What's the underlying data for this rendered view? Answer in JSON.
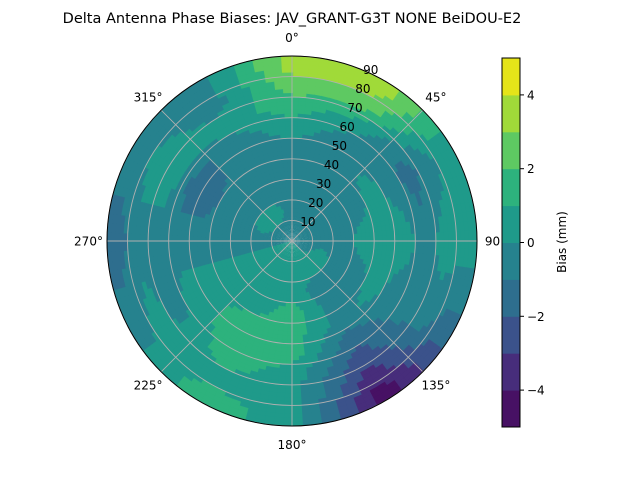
{
  "chart_data": {
    "type": "heatmap",
    "projection": "polar",
    "title": "Delta Antenna Phase Biases: JAV_GRANT-G3T   NONE BeiDOU-E2",
    "theta_zero_location": "top",
    "theta_direction": "clockwise",
    "theta_tick_labels": [
      "0°",
      "45°",
      "90°",
      "135°",
      "180°",
      "225°",
      "270°",
      "315°"
    ],
    "theta_ticks": [
      0,
      45,
      90,
      135,
      180,
      225,
      270,
      315
    ],
    "r_tick_labels": [
      "10",
      "20",
      "30",
      "40",
      "50",
      "60",
      "70",
      "80",
      "90"
    ],
    "r_ticks": [
      10,
      20,
      30,
      40,
      50,
      60,
      70,
      80,
      90
    ],
    "rlim": [
      0,
      90
    ],
    "grid": true,
    "colormap": "viridis",
    "colorbar": {
      "label": "Bias (mm)",
      "range": [
        -5,
        5
      ],
      "levels": [
        -5,
        -4,
        -3,
        -2,
        -1,
        0,
        1,
        2,
        3,
        4,
        5
      ],
      "tick_values": [
        4,
        2,
        0,
        -2,
        -4
      ],
      "tick_labels": [
        "4",
        "2",
        "0",
        "−2",
        "−4"
      ],
      "band_colors": [
        "#471164",
        "#472d7b",
        "#3b528b",
        "#2e6e8e",
        "#26828e",
        "#1f9a8a",
        "#2db27d",
        "#5ec962",
        "#a0da39",
        "#e5e419"
      ]
    },
    "azimuth_deg": [
      0,
      30,
      60,
      90,
      120,
      150,
      180,
      210,
      240,
      270,
      300,
      330
    ],
    "zenith_deg": [
      5,
      15,
      25,
      35,
      45,
      55,
      65,
      75,
      85
    ],
    "bias_mm": [
      [
        -0.5,
        -0.5,
        -0.5,
        -0.5,
        -0.5,
        0.5,
        1.5,
        2.5,
        3.5
      ],
      [
        -0.5,
        -0.5,
        -0.5,
        -0.5,
        -0.5,
        -0.5,
        0.5,
        2.5,
        3.5
      ],
      [
        -0.5,
        -0.5,
        -0.5,
        -0.5,
        0.5,
        -0.5,
        -1.5,
        -0.5,
        0.5
      ],
      [
        -0.5,
        -0.5,
        -0.5,
        0.5,
        0.5,
        0.5,
        -0.5,
        0.5,
        0.5
      ],
      [
        -0.5,
        0.5,
        -0.5,
        -0.5,
        0.5,
        -0.5,
        -0.5,
        -0.5,
        -1.5
      ],
      [
        0.5,
        0.5,
        -0.5,
        -0.5,
        -0.5,
        -1.5,
        -2.5,
        -3.5,
        -4.5
      ],
      [
        0.5,
        0.5,
        0.5,
        1.5,
        1.5,
        1.5,
        0.5,
        0.5,
        0.5
      ],
      [
        0.5,
        0.5,
        0.5,
        0.5,
        1.5,
        1.5,
        1.5,
        0.5,
        1.5
      ],
      [
        0.5,
        0.5,
        0.5,
        0.5,
        0.5,
        0.5,
        -0.5,
        0.5,
        -0.5
      ],
      [
        -0.5,
        -0.5,
        -0.5,
        -0.5,
        -0.5,
        -0.5,
        -0.5,
        -0.5,
        -1.5
      ],
      [
        -0.5,
        0.5,
        -0.5,
        -0.5,
        -1.5,
        -1.5,
        0.5,
        0.5,
        -0.5
      ],
      [
        -0.5,
        0.5,
        -0.5,
        -0.5,
        -0.5,
        -0.5,
        0.5,
        -0.5,
        -0.5
      ]
    ],
    "grid_color": "#b0b0b0"
  }
}
